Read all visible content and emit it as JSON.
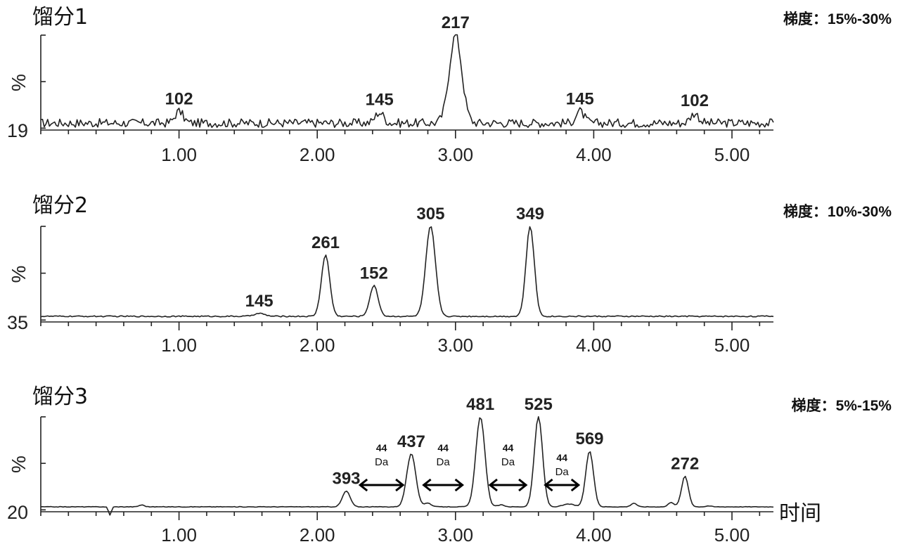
{
  "chart_data": [
    {
      "type": "line",
      "title": "馏分1",
      "gradient_label": "梯度：15%-30%",
      "ylabel": "%",
      "y_bottom_label": "19",
      "xlabel": "",
      "xlim": [
        0.0,
        5.3
      ],
      "ylim": [
        0,
        100
      ],
      "x_ticks": [
        1.0,
        2.0,
        3.0,
        4.0,
        5.0
      ],
      "x_tick_labels": [
        "1.00",
        "2.00",
        "3.00",
        "4.00",
        "5.00"
      ],
      "baseline": 10,
      "noise_amplitude": 4.5,
      "peaks": [
        {
          "x": 1.0,
          "y": 22,
          "width": 0.03,
          "label": "102"
        },
        {
          "x": 2.45,
          "y": 21,
          "width": 0.03,
          "label": "145"
        },
        {
          "x": 3.0,
          "y": 100,
          "width": 0.045,
          "label": "217"
        },
        {
          "x": 3.9,
          "y": 22,
          "width": 0.03,
          "label": "145"
        },
        {
          "x": 4.73,
          "y": 20,
          "width": 0.03,
          "label": "102"
        }
      ],
      "annotations": []
    },
    {
      "type": "line",
      "title": "馏分2",
      "gradient_label": "梯度：10%-30%",
      "ylabel": "%",
      "y_bottom_label": "35",
      "xlabel": "",
      "xlim": [
        0.0,
        5.3
      ],
      "ylim": [
        0,
        100
      ],
      "x_ticks": [
        1.0,
        2.0,
        3.0,
        4.0,
        5.0
      ],
      "x_tick_labels": [
        "1.00",
        "2.00",
        "3.00",
        "4.00",
        "5.00"
      ],
      "baseline": 6,
      "noise_amplitude": 0.6,
      "peaks": [
        {
          "x": 1.58,
          "y": 9,
          "width": 0.04,
          "label": "145"
        },
        {
          "x": 2.06,
          "y": 70,
          "width": 0.03,
          "label": "261"
        },
        {
          "x": 2.41,
          "y": 38,
          "width": 0.03,
          "label": "152"
        },
        {
          "x": 2.82,
          "y": 100,
          "width": 0.035,
          "label": "305"
        },
        {
          "x": 3.54,
          "y": 100,
          "width": 0.03,
          "label": "349"
        }
      ],
      "annotations": []
    },
    {
      "type": "line",
      "title": "馏分3",
      "gradient_label": "梯度：5%-15%",
      "ylabel": "%",
      "y_bottom_label": "20",
      "xlabel": "时间",
      "xlim": [
        0.0,
        5.3
      ],
      "ylim": [
        0,
        100
      ],
      "x_ticks": [
        1.0,
        2.0,
        3.0,
        4.0,
        5.0
      ],
      "x_tick_labels": [
        "1.00",
        "2.00",
        "3.00",
        "4.00",
        "5.00"
      ],
      "baseline": 3,
      "noise_amplitude": 0.3,
      "peaks": [
        {
          "x": 0.5,
          "y": -6,
          "width": 0.01,
          "label": ""
        },
        {
          "x": 0.73,
          "y": 5,
          "width": 0.02,
          "label": ""
        },
        {
          "x": 2.21,
          "y": 20,
          "width": 0.028,
          "label": "393"
        },
        {
          "x": 2.68,
          "y": 60,
          "width": 0.033,
          "label": "437"
        },
        {
          "x": 2.8,
          "y": 7,
          "width": 0.025,
          "label": ""
        },
        {
          "x": 3.18,
          "y": 100,
          "width": 0.033,
          "label": "481"
        },
        {
          "x": 3.33,
          "y": 5,
          "width": 0.025,
          "label": ""
        },
        {
          "x": 3.6,
          "y": 100,
          "width": 0.03,
          "label": "525"
        },
        {
          "x": 3.82,
          "y": 6,
          "width": 0.04,
          "label": ""
        },
        {
          "x": 3.97,
          "y": 63,
          "width": 0.028,
          "label": "569"
        },
        {
          "x": 4.29,
          "y": 7,
          "width": 0.02,
          "label": ""
        },
        {
          "x": 4.56,
          "y": 8,
          "width": 0.02,
          "label": ""
        },
        {
          "x": 4.66,
          "y": 36,
          "width": 0.025,
          "label": "272"
        },
        {
          "x": 4.83,
          "y": 4,
          "width": 0.02,
          "label": ""
        }
      ],
      "annotations": [
        {
          "from": 2.3,
          "to": 2.63,
          "text": "44",
          "unit": "Da"
        },
        {
          "from": 2.76,
          "to": 3.06,
          "text": "44",
          "unit": "Da"
        },
        {
          "from": 3.24,
          "to": 3.52,
          "text": "44",
          "unit": "Da"
        },
        {
          "from": 3.64,
          "to": 3.9,
          "text": "44",
          "unit": "Da"
        }
      ]
    }
  ]
}
